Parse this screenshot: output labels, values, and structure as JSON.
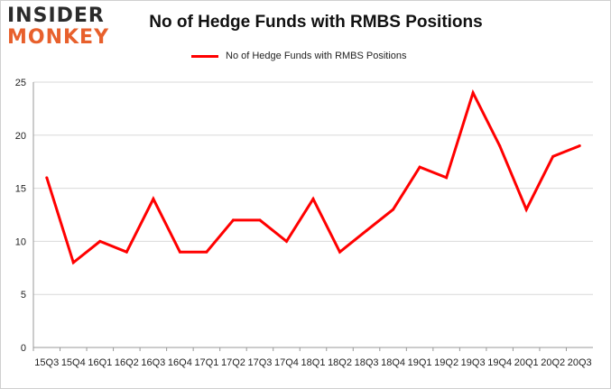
{
  "logo": {
    "line1": "INSIDER",
    "line2": "MONKEY"
  },
  "colors": {
    "series": "#ff0000",
    "grid": "#d9d9d9",
    "axis": "#999999",
    "logo_accent": "#e8602c"
  },
  "chart_data": {
    "type": "line",
    "title": "No of Hedge Funds with RMBS Positions",
    "xlabel": "",
    "ylabel": "",
    "legend": "top-center",
    "grid": true,
    "ylim": [
      0,
      25
    ],
    "yticks": [
      0,
      5,
      10,
      15,
      20,
      25
    ],
    "categories": [
      "15Q3",
      "15Q4",
      "16Q1",
      "16Q2",
      "16Q3",
      "16Q4",
      "17Q1",
      "17Q2",
      "17Q3",
      "17Q4",
      "18Q1",
      "18Q2",
      "18Q3",
      "18Q4",
      "19Q1",
      "19Q2",
      "19Q3",
      "19Q4",
      "20Q1",
      "20Q2",
      "20Q3"
    ],
    "series": [
      {
        "name": "No of Hedge Funds with RMBS Positions",
        "values": [
          16,
          8,
          10,
          9,
          14,
          9,
          9,
          12,
          12,
          10,
          14,
          9,
          11,
          13,
          17,
          16,
          24,
          19,
          13,
          18,
          19
        ]
      }
    ]
  }
}
